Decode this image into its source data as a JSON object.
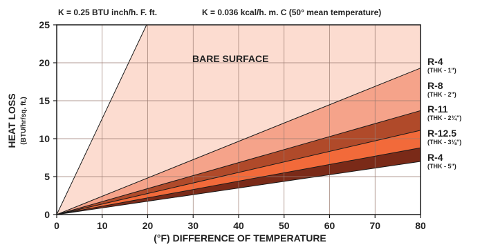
{
  "header": {
    "left": "K = 0.25 BTU inch/h. F. ft.",
    "right": "K = 0.036 kcal/h. m. C (50° mean temperature)"
  },
  "chart_data": {
    "type": "area",
    "xlabel": "(°F) DIFFERENCE OF TEMPERATURE",
    "ylabel": "HEAT LOSS",
    "ylabel_sub": "(BTU/hr/sq. ft.)",
    "xlim": [
      0,
      80
    ],
    "ylim": [
      0,
      25
    ],
    "x_ticks": [
      0,
      10,
      20,
      30,
      40,
      50,
      60,
      70,
      80
    ],
    "y_ticks": [
      0,
      5,
      10,
      15,
      20,
      25
    ],
    "grid": true,
    "annotation": "BARE SURFACE",
    "bare_surface_line": {
      "x": [
        0,
        20
      ],
      "y": [
        0,
        25.3
      ]
    },
    "series": [
      {
        "name": "R-4",
        "detail": "(THK - 1\")",
        "x": [
          0,
          80
        ],
        "y": [
          0,
          19.3
        ],
        "color": "#f5a38a"
      },
      {
        "name": "R-8",
        "detail": "(THK - 2\")",
        "x": [
          0,
          80
        ],
        "y": [
          0,
          13.7
        ],
        "color": "#b04a2a"
      },
      {
        "name": "R-11",
        "detail": "(THK - 2¾\")",
        "x": [
          0,
          80
        ],
        "y": [
          0,
          11.1
        ],
        "color": "#f26a3a"
      },
      {
        "name": "R-12.5",
        "detail": "(THK - 3⅛\")",
        "x": [
          0,
          80
        ],
        "y": [
          0,
          8.8
        ],
        "color": "#7a2a18"
      },
      {
        "name": "R-4",
        "detail": "(THK - 5\")",
        "x": [
          0,
          80
        ],
        "y": [
          0,
          7.0
        ],
        "color": "#ffffff"
      }
    ],
    "colors": {
      "bare_surface_region": "#fcdcd0",
      "grid": "#9a7a70",
      "line": "#1a1a1a"
    }
  }
}
